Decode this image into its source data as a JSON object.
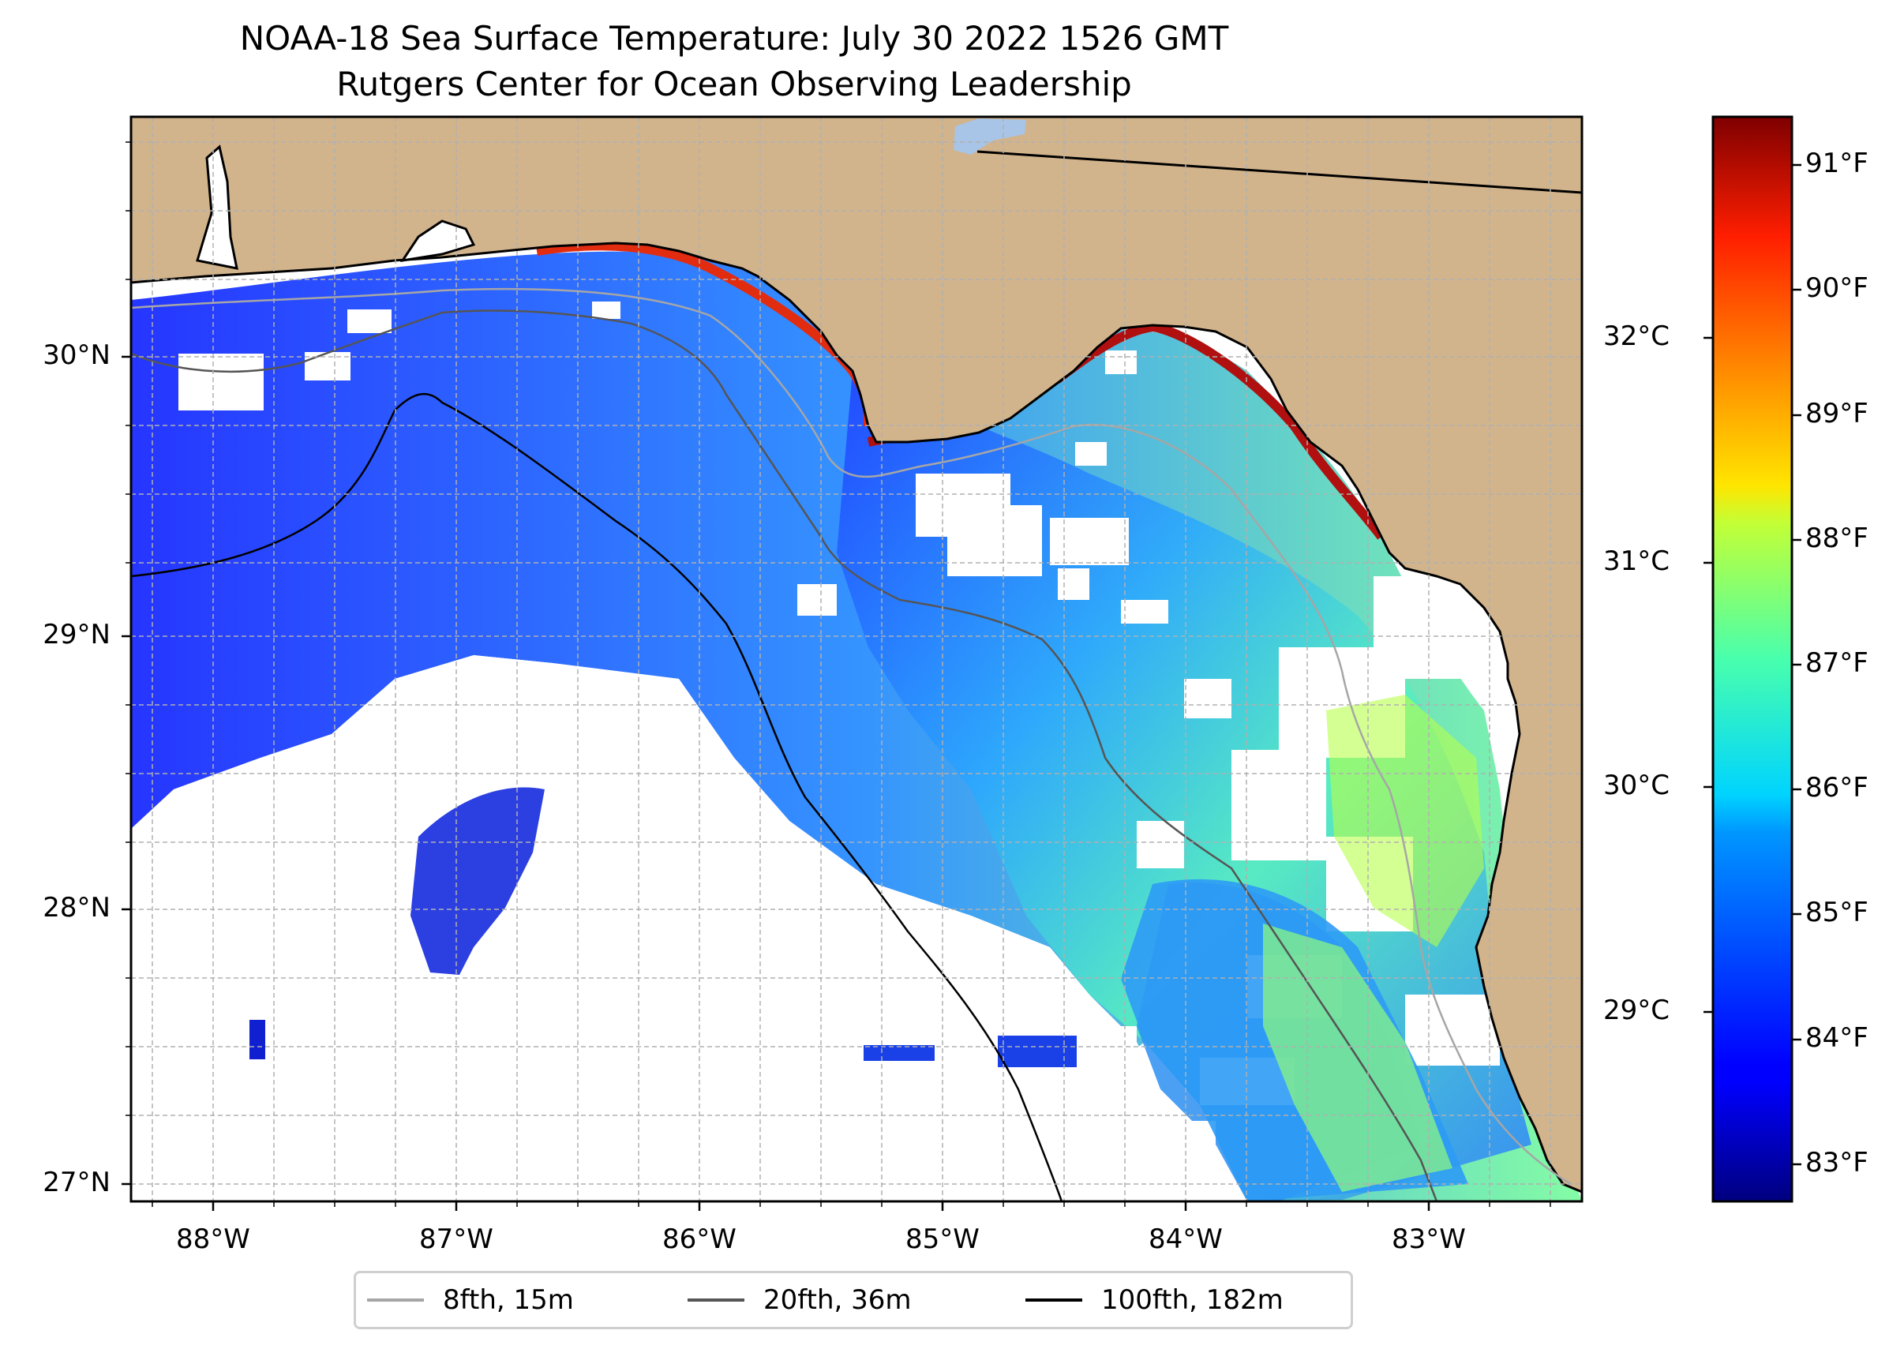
{
  "title": {
    "line1": "NOAA-18 Sea Surface Temperature: July 30 2022 1526 GMT",
    "line2": "Rutgers Center for Ocean Observing Leadership"
  },
  "map": {
    "lon_range": [
      -88.34,
      -82.36
    ],
    "lat_range": [
      26.94,
      30.87
    ],
    "lat_labels": [
      "30°N",
      "29°N",
      "28°N",
      "27°N"
    ],
    "lon_labels": [
      "88°W",
      "87°W",
      "86°W",
      "85°W",
      "84°W",
      "83°W"
    ],
    "gridlines": "on"
  },
  "colorbar": {
    "colormap": "jet",
    "fahrenheit_labels": [
      "91°F",
      "90°F",
      "89°F",
      "88°F",
      "87°F",
      "86°F",
      "85°F",
      "84°F",
      "83°F"
    ],
    "fahrenheit_values": [
      91,
      90,
      89,
      88,
      87,
      86,
      85,
      84,
      83
    ],
    "celsius_labels": [
      "32°C",
      "31°C",
      "30°C",
      "29°C"
    ],
    "celsius_values": [
      32,
      31,
      30,
      29
    ],
    "range_f": [
      82.7,
      91.4
    ]
  },
  "legend": {
    "items": [
      {
        "label": "8fth, 15m",
        "color": "#a6a6a6"
      },
      {
        "label": "20fth, 36m",
        "color": "#555555"
      },
      {
        "label": "100fth, 182m",
        "color": "#000000"
      }
    ]
  },
  "colors": {
    "land": "#d2b48c",
    "lake": "#a8c4e6",
    "grid": "#b0b0b0"
  }
}
